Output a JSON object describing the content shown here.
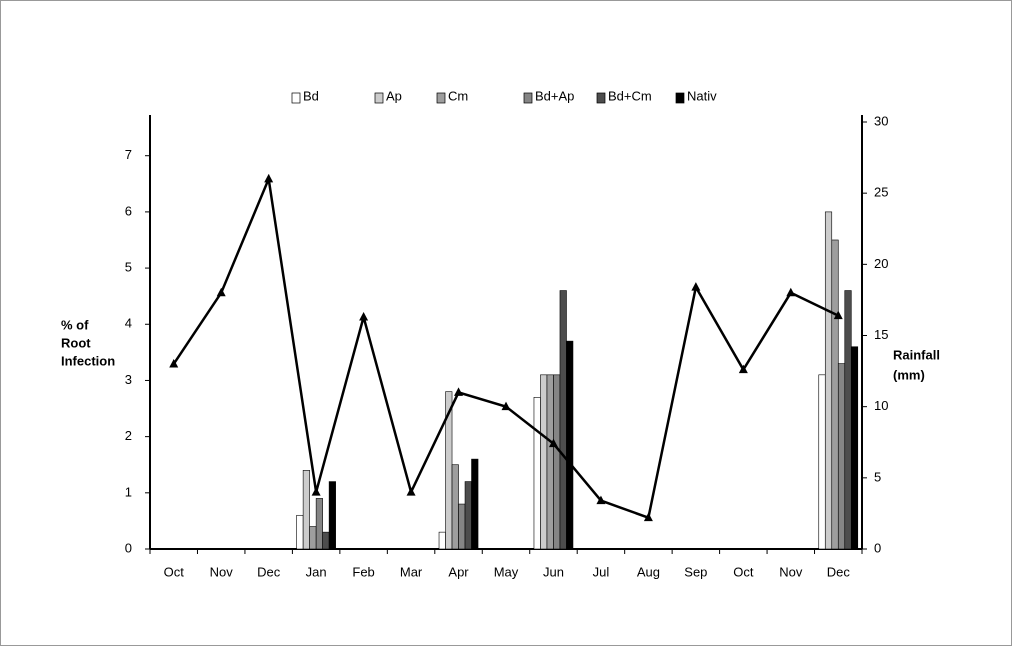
{
  "chart_data": {
    "type": "bar",
    "categories": [
      "Oct",
      "Nov",
      "Dec",
      "Jan",
      "Feb",
      "Mar",
      "Apr",
      "May",
      "Jun",
      "Jul",
      "Aug",
      "Sep",
      "Oct",
      "Nov",
      "Dec"
    ],
    "y_label": [
      "% of",
      "Root",
      "Infection"
    ],
    "y2_label": [
      "Rainfall",
      "(mm)"
    ],
    "ylim": [
      0,
      7.6
    ],
    "yticks": [
      0,
      1,
      2,
      3,
      4,
      5,
      6,
      7
    ],
    "y2lim": [
      0,
      30
    ],
    "y2ticks": [
      0,
      5,
      10,
      15,
      20,
      25,
      30
    ],
    "series": [
      {
        "name": "Bd",
        "color": "#ffffff",
        "values": [
          null,
          null,
          null,
          0.6,
          null,
          null,
          0.3,
          null,
          2.7,
          null,
          null,
          null,
          null,
          null,
          3.1
        ]
      },
      {
        "name": "Ap",
        "color": "#cccccc",
        "values": [
          null,
          null,
          null,
          1.4,
          null,
          null,
          2.8,
          null,
          3.1,
          null,
          null,
          null,
          null,
          null,
          6.0
        ]
      },
      {
        "name": "Cm",
        "color": "#9e9e9e",
        "values": [
          null,
          null,
          null,
          0.4,
          null,
          null,
          1.5,
          null,
          3.1,
          null,
          null,
          null,
          null,
          null,
          5.5
        ]
      },
      {
        "name": "Bd+Ap",
        "color": "#858585",
        "values": [
          null,
          null,
          null,
          0.9,
          null,
          null,
          0.8,
          null,
          3.1,
          null,
          null,
          null,
          null,
          null,
          3.3
        ]
      },
      {
        "name": "Bd+Cm",
        "color": "#4d4d4d",
        "values": [
          null,
          null,
          null,
          0.3,
          null,
          null,
          1.2,
          null,
          4.6,
          null,
          null,
          null,
          null,
          null,
          4.6
        ]
      },
      {
        "name": "Nativ",
        "color": "#000000",
        "values": [
          null,
          null,
          null,
          1.2,
          null,
          null,
          1.6,
          null,
          3.7,
          null,
          null,
          null,
          null,
          null,
          3.6
        ]
      },
      {
        "type": "line",
        "axis": "y2",
        "color": "#000000",
        "values": [
          13,
          18,
          26,
          4,
          16.3,
          4,
          11,
          10,
          7.4,
          3.4,
          2.2,
          18.4,
          12.6,
          18,
          16.4
        ]
      }
    ]
  }
}
